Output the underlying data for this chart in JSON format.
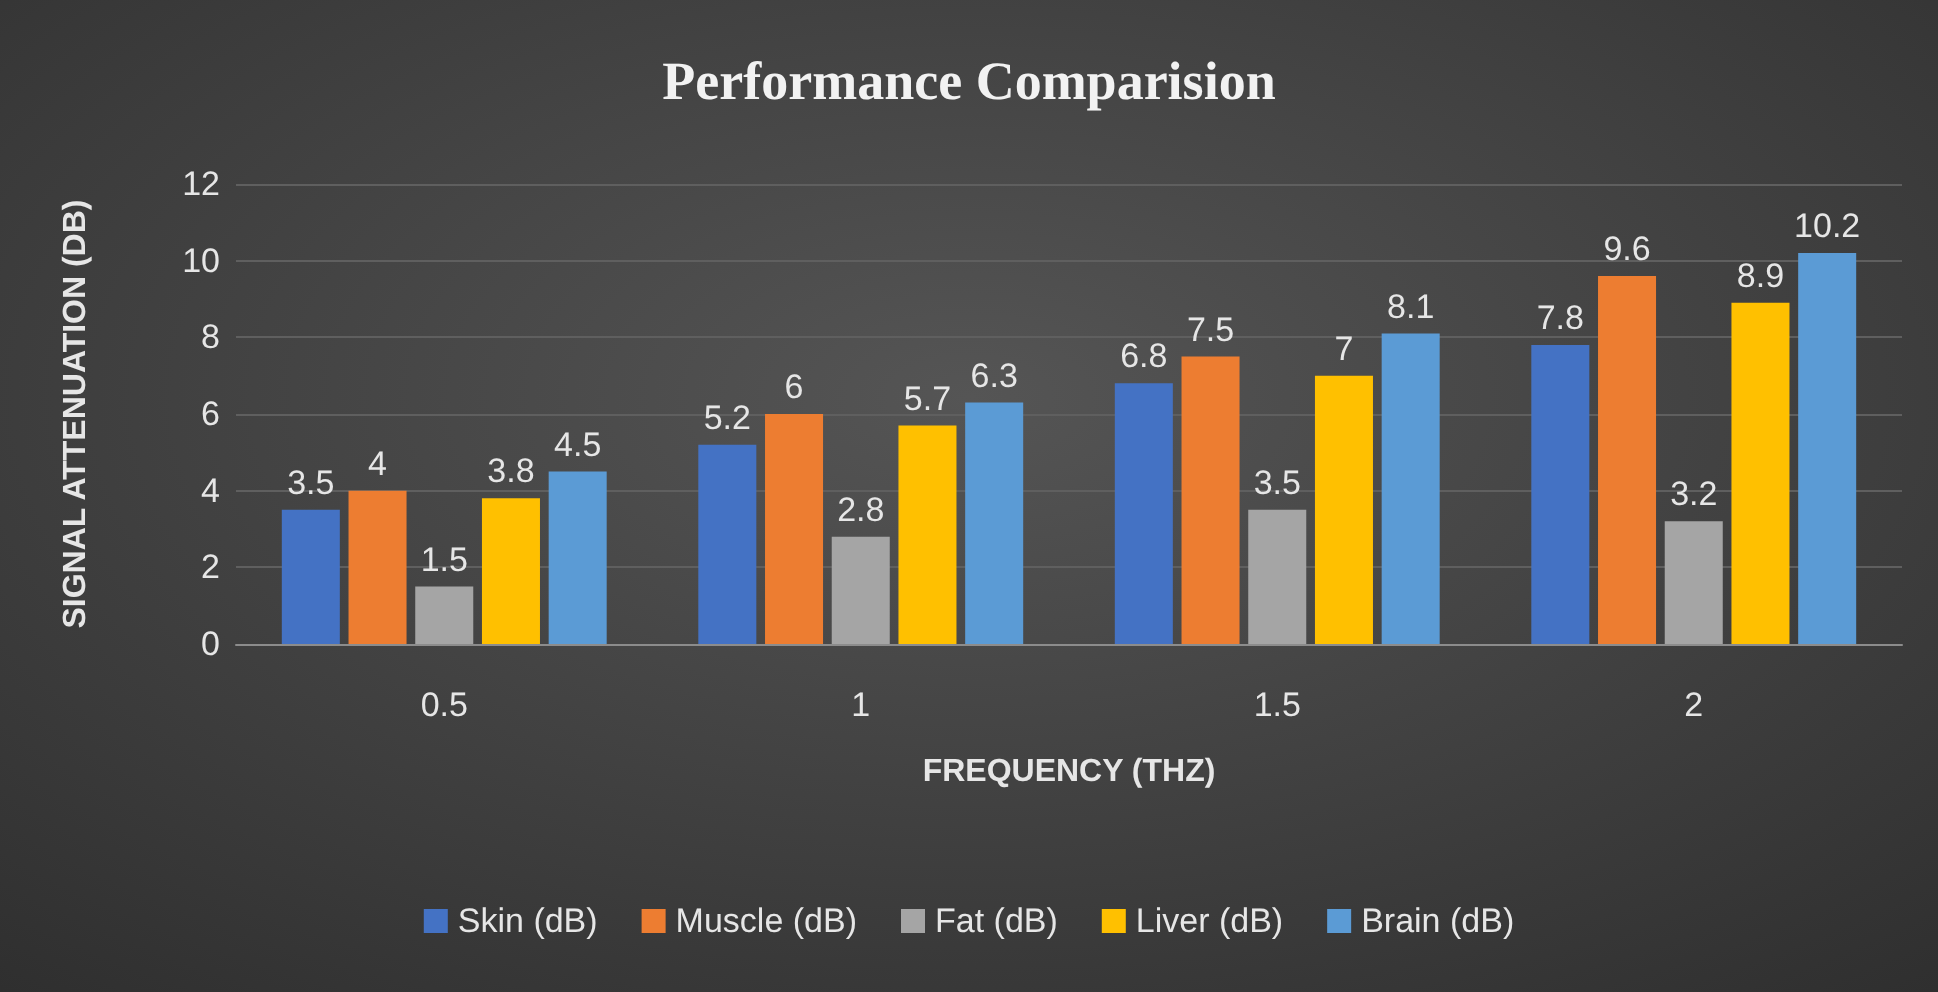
{
  "chart_data": {
    "type": "bar",
    "title": "Performance Comparision",
    "xlabel": "FREQUENCY (THZ)",
    "ylabel": "SIGNAL ATTENUATION (DB)",
    "categories": [
      "0.5",
      "1",
      "1.5",
      "2"
    ],
    "series": [
      {
        "name": "Skin (dB)",
        "color": "#4472c4",
        "values": [
          3.5,
          5.2,
          6.8,
          7.8
        ]
      },
      {
        "name": "Muscle (dB)",
        "color": "#ed7d31",
        "values": [
          4,
          6,
          7.5,
          9.6
        ]
      },
      {
        "name": "Fat (dB)",
        "color": "#a5a5a5",
        "values": [
          1.5,
          2.8,
          3.5,
          3.2
        ]
      },
      {
        "name": "Liver (dB)",
        "color": "#ffc000",
        "values": [
          3.8,
          5.7,
          7,
          8.9
        ]
      },
      {
        "name": "Brain (dB)",
        "color": "#5b9bd5",
        "values": [
          4.5,
          6.3,
          8.1,
          10.2
        ]
      }
    ],
    "ylim": [
      0,
      12
    ],
    "yticks": [
      0,
      2,
      4,
      6,
      8,
      10,
      12
    ],
    "grid": "y",
    "legend": "bottom",
    "data_labels": true
  }
}
